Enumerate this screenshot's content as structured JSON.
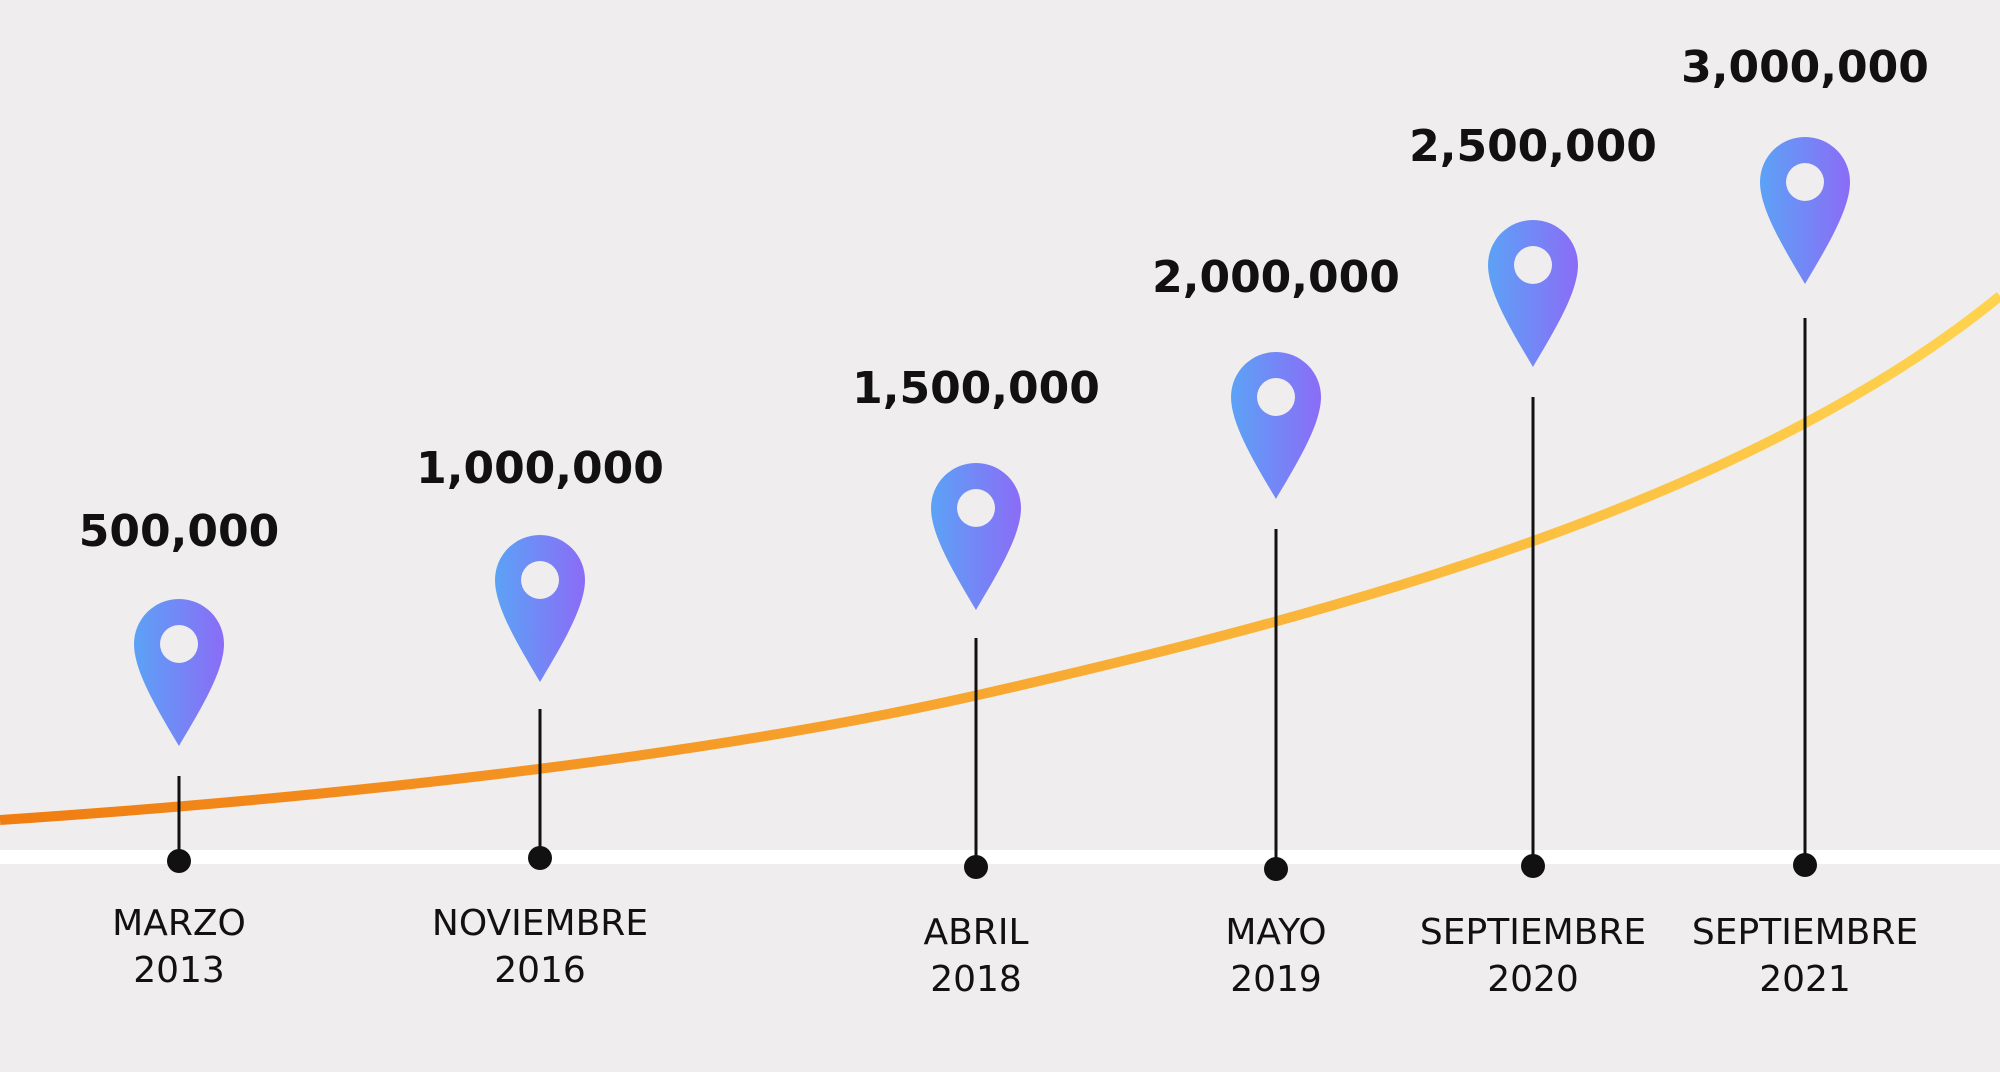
{
  "milestones": [
    {
      "value": "500,000",
      "month": "MARZO",
      "year": "2013"
    },
    {
      "value": "1,000,000",
      "month": "NOVIEMBRE",
      "year": "2016"
    },
    {
      "value": "1,500,000",
      "month": "ABRIL",
      "year": "2018"
    },
    {
      "value": "2,000,000",
      "month": "MAYO",
      "year": "2019"
    },
    {
      "value": "2,500,000",
      "month": "SEPTIEMBRE",
      "year": "2020"
    },
    {
      "value": "3,000,000",
      "month": "SEPTIEMBRE",
      "year": "2021"
    }
  ]
}
